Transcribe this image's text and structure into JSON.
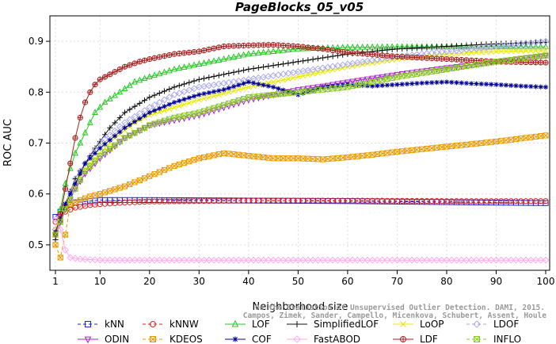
{
  "chart_data": {
    "type": "line",
    "title": "PageBlocks_05_v05",
    "xlabel": "Neighborhood size",
    "ylabel": "ROC AUC",
    "xlim": [
      1,
      100
    ],
    "ylim": [
      0.45,
      0.95
    ],
    "xticks": [
      1,
      10,
      20,
      30,
      40,
      50,
      60,
      70,
      80,
      90,
      100
    ],
    "yticks": [
      0.5,
      0.6,
      0.7,
      0.8,
      0.9
    ],
    "grid": true,
    "legend_position": "bottom",
    "credit": [
      "Campos, Zimek, Sander, Campello, Micenkova, Schubert, Assent, Houle",
      "On the Evaluation of Unsupervised Outlier Detection. DAMI, 2015."
    ],
    "series": [
      {
        "name": "kNN",
        "color": "#2222cc",
        "marker": "square",
        "dash": "4,3",
        "points": [
          [
            1,
            0.555
          ],
          [
            3,
            0.575
          ],
          [
            5,
            0.583
          ],
          [
            8,
            0.586
          ],
          [
            10,
            0.588
          ],
          [
            20,
            0.588
          ],
          [
            40,
            0.587
          ],
          [
            60,
            0.586
          ],
          [
            80,
            0.584
          ],
          [
            100,
            0.582
          ]
        ]
      },
      {
        "name": "kNNW",
        "color": "#dd2222",
        "marker": "circle",
        "dash": "4,3",
        "points": [
          [
            1,
            0.545
          ],
          [
            3,
            0.565
          ],
          [
            5,
            0.573
          ],
          [
            8,
            0.578
          ],
          [
            10,
            0.58
          ],
          [
            15,
            0.583
          ],
          [
            20,
            0.585
          ],
          [
            40,
            0.587
          ],
          [
            60,
            0.587
          ],
          [
            80,
            0.586
          ],
          [
            100,
            0.586
          ]
        ]
      },
      {
        "name": "LOF",
        "color": "#22cc22",
        "marker": "triangle",
        "dash": "",
        "points": [
          [
            1,
            0.52
          ],
          [
            3,
            0.62
          ],
          [
            5,
            0.68
          ],
          [
            7,
            0.72
          ],
          [
            9,
            0.76
          ],
          [
            11,
            0.78
          ],
          [
            14,
            0.8
          ],
          [
            17,
            0.82
          ],
          [
            20,
            0.83
          ],
          [
            25,
            0.845
          ],
          [
            30,
            0.855
          ],
          [
            35,
            0.865
          ],
          [
            40,
            0.875
          ],
          [
            50,
            0.885
          ],
          [
            60,
            0.888
          ],
          [
            70,
            0.889
          ],
          [
            80,
            0.889
          ],
          [
            90,
            0.889
          ],
          [
            100,
            0.889
          ]
        ]
      },
      {
        "name": "SimplifiedLOF",
        "color": "#111111",
        "marker": "plus",
        "dash": "",
        "points": [
          [
            1,
            0.51
          ],
          [
            3,
            0.58
          ],
          [
            5,
            0.63
          ],
          [
            7,
            0.66
          ],
          [
            9,
            0.69
          ],
          [
            12,
            0.73
          ],
          [
            15,
            0.76
          ],
          [
            20,
            0.79
          ],
          [
            25,
            0.81
          ],
          [
            30,
            0.825
          ],
          [
            40,
            0.845
          ],
          [
            50,
            0.86
          ],
          [
            60,
            0.875
          ],
          [
            70,
            0.885
          ],
          [
            80,
            0.89
          ],
          [
            90,
            0.895
          ],
          [
            100,
            0.898
          ]
        ]
      },
      {
        "name": "LoOP",
        "color": "#e8e800",
        "marker": "x",
        "dash": "",
        "points": [
          [
            1,
            0.53
          ],
          [
            3,
            0.58
          ],
          [
            5,
            0.62
          ],
          [
            7,
            0.65
          ],
          [
            10,
            0.68
          ],
          [
            13,
            0.71
          ],
          [
            17,
            0.74
          ],
          [
            20,
            0.755
          ],
          [
            25,
            0.77
          ],
          [
            30,
            0.785
          ],
          [
            40,
            0.81
          ],
          [
            50,
            0.83
          ],
          [
            60,
            0.85
          ],
          [
            70,
            0.865
          ],
          [
            80,
            0.875
          ],
          [
            90,
            0.88
          ],
          [
            100,
            0.882
          ]
        ]
      },
      {
        "name": "LDOF",
        "color": "#aaaaee",
        "marker": "diamond",
        "dash": "4,3",
        "points": [
          [
            1,
            0.53
          ],
          [
            3,
            0.58
          ],
          [
            5,
            0.63
          ],
          [
            7,
            0.66
          ],
          [
            10,
            0.7
          ],
          [
            15,
            0.74
          ],
          [
            20,
            0.77
          ],
          [
            25,
            0.795
          ],
          [
            30,
            0.81
          ],
          [
            40,
            0.825
          ],
          [
            50,
            0.84
          ],
          [
            60,
            0.855
          ],
          [
            70,
            0.87
          ],
          [
            80,
            0.88
          ],
          [
            90,
            0.89
          ],
          [
            100,
            0.9
          ]
        ]
      },
      {
        "name": "ODIN",
        "color": "#aa22cc",
        "marker": "triangle-down",
        "dash": "",
        "points": [
          [
            1,
            0.52
          ],
          [
            3,
            0.57
          ],
          [
            5,
            0.61
          ],
          [
            7,
            0.64
          ],
          [
            10,
            0.67
          ],
          [
            15,
            0.71
          ],
          [
            20,
            0.735
          ],
          [
            25,
            0.745
          ],
          [
            30,
            0.755
          ],
          [
            35,
            0.77
          ],
          [
            40,
            0.785
          ],
          [
            45,
            0.795
          ],
          [
            50,
            0.805
          ],
          [
            55,
            0.812
          ],
          [
            60,
            0.82
          ],
          [
            70,
            0.835
          ],
          [
            80,
            0.848
          ],
          [
            90,
            0.86
          ],
          [
            100,
            0.872
          ]
        ]
      },
      {
        "name": "KDEOS",
        "color": "#ee9900",
        "marker": "square-x",
        "dash": "4,3",
        "points": [
          [
            1,
            0.5
          ],
          [
            2,
            0.475
          ],
          [
            3,
            0.52
          ],
          [
            4,
            0.58
          ],
          [
            6,
            0.588
          ],
          [
            8,
            0.595
          ],
          [
            10,
            0.6
          ],
          [
            15,
            0.615
          ],
          [
            20,
            0.635
          ],
          [
            25,
            0.655
          ],
          [
            30,
            0.67
          ],
          [
            35,
            0.68
          ],
          [
            40,
            0.675
          ],
          [
            45,
            0.67
          ],
          [
            50,
            0.67
          ],
          [
            55,
            0.668
          ],
          [
            60,
            0.672
          ],
          [
            65,
            0.677
          ],
          [
            70,
            0.683
          ],
          [
            75,
            0.688
          ],
          [
            80,
            0.693
          ],
          [
            85,
            0.698
          ],
          [
            90,
            0.703
          ],
          [
            95,
            0.709
          ],
          [
            100,
            0.715
          ]
        ]
      },
      {
        "name": "COF",
        "color": "#000099",
        "marker": "asterisk",
        "dash": "",
        "points": [
          [
            1,
            0.525
          ],
          [
            3,
            0.58
          ],
          [
            5,
            0.62
          ],
          [
            7,
            0.66
          ],
          [
            10,
            0.69
          ],
          [
            15,
            0.73
          ],
          [
            20,
            0.76
          ],
          [
            25,
            0.78
          ],
          [
            30,
            0.795
          ],
          [
            35,
            0.805
          ],
          [
            40,
            0.82
          ],
          [
            45,
            0.81
          ],
          [
            50,
            0.795
          ],
          [
            55,
            0.81
          ],
          [
            60,
            0.815
          ],
          [
            65,
            0.812
          ],
          [
            70,
            0.815
          ],
          [
            75,
            0.818
          ],
          [
            80,
            0.82
          ],
          [
            85,
            0.817
          ],
          [
            90,
            0.815
          ],
          [
            95,
            0.812
          ],
          [
            100,
            0.81
          ]
        ]
      },
      {
        "name": "FastABOD",
        "color": "#ffaaee",
        "marker": "diamond",
        "dash": "",
        "points": [
          [
            1,
            0.55
          ],
          [
            2,
            0.53
          ],
          [
            3,
            0.49
          ],
          [
            4,
            0.475
          ],
          [
            6,
            0.472
          ],
          [
            10,
            0.47
          ],
          [
            20,
            0.47
          ],
          [
            40,
            0.47
          ],
          [
            60,
            0.47
          ],
          [
            80,
            0.47
          ],
          [
            100,
            0.47
          ]
        ]
      },
      {
        "name": "LDF",
        "color": "#aa2222",
        "marker": "circle-plus",
        "dash": "",
        "points": [
          [
            1,
            0.52
          ],
          [
            2,
            0.56
          ],
          [
            3,
            0.61
          ],
          [
            4,
            0.66
          ],
          [
            5,
            0.71
          ],
          [
            6,
            0.75
          ],
          [
            7,
            0.78
          ],
          [
            8,
            0.8
          ],
          [
            9,
            0.815
          ],
          [
            10,
            0.825
          ],
          [
            12,
            0.835
          ],
          [
            15,
            0.85
          ],
          [
            18,
            0.86
          ],
          [
            20,
            0.865
          ],
          [
            25,
            0.875
          ],
          [
            30,
            0.88
          ],
          [
            35,
            0.89
          ],
          [
            40,
            0.892
          ],
          [
            45,
            0.893
          ],
          [
            50,
            0.89
          ],
          [
            55,
            0.885
          ],
          [
            60,
            0.878
          ],
          [
            70,
            0.87
          ],
          [
            80,
            0.865
          ],
          [
            90,
            0.86
          ],
          [
            100,
            0.858
          ]
        ]
      },
      {
        "name": "INFLO",
        "color": "#88cc22",
        "marker": "square-x",
        "dash": "4,3",
        "points": [
          [
            1,
            0.52
          ],
          [
            3,
            0.57
          ],
          [
            5,
            0.61
          ],
          [
            7,
            0.645
          ],
          [
            10,
            0.675
          ],
          [
            15,
            0.71
          ],
          [
            20,
            0.735
          ],
          [
            25,
            0.75
          ],
          [
            30,
            0.76
          ],
          [
            35,
            0.775
          ],
          [
            40,
            0.79
          ],
          [
            45,
            0.795
          ],
          [
            50,
            0.8
          ],
          [
            55,
            0.805
          ],
          [
            60,
            0.81
          ],
          [
            65,
            0.82
          ],
          [
            70,
            0.83
          ],
          [
            80,
            0.845
          ],
          [
            90,
            0.86
          ],
          [
            100,
            0.872
          ]
        ]
      }
    ]
  }
}
